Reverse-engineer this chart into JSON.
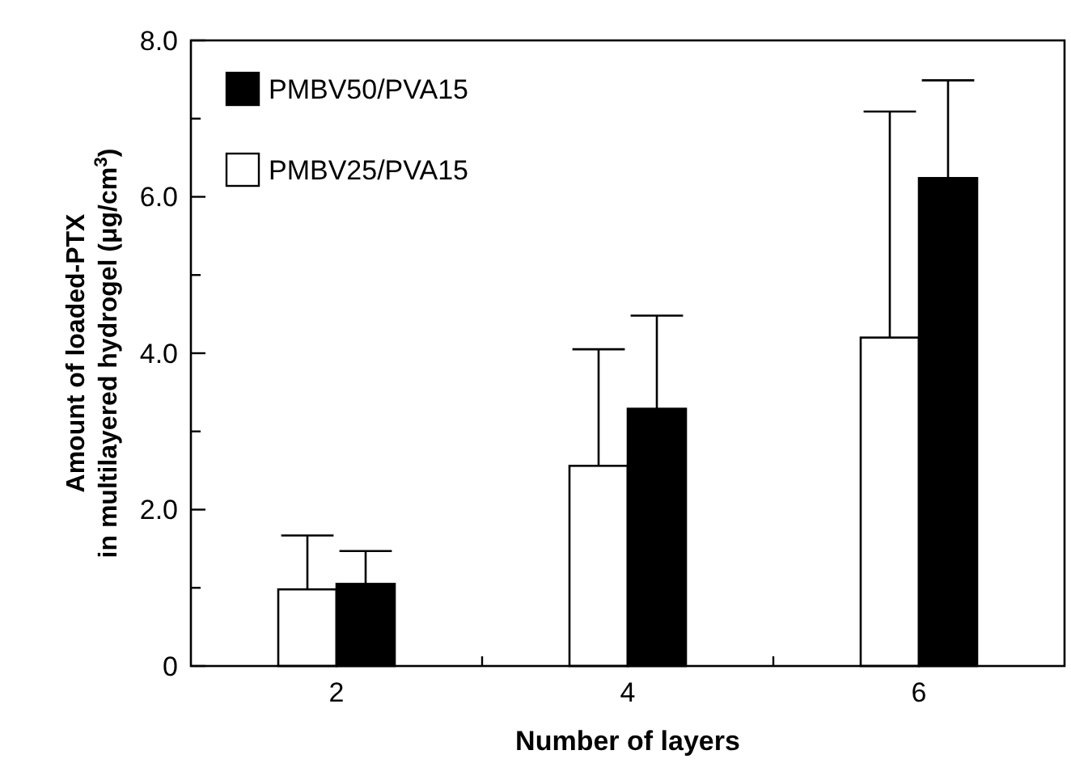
{
  "chart_data": {
    "type": "bar",
    "xlabel": "Number of layers",
    "ylabel": "Amount of loaded-PTX\nin multilayered hydrogel (μg/cm$^{3}$)",
    "categories": [
      "2",
      "4",
      "6"
    ],
    "series": [
      {
        "name": "PMBV25/PVA15",
        "color": "#ffffff",
        "values": [
          0.98,
          2.56,
          4.2
        ],
        "errors": [
          [
            0.98,
            1.67
          ],
          [
            2.56,
            4.05
          ],
          [
            4.2,
            7.09
          ]
        ]
      },
      {
        "name": "PMBV50/PVA15",
        "color": "#000000",
        "values": [
          1.05,
          3.29,
          6.24
        ],
        "errors": [
          [
            1.05,
            1.47
          ],
          [
            3.29,
            4.48
          ],
          [
            6.24,
            7.49
          ]
        ]
      }
    ],
    "ylim": [
      0,
      8
    ],
    "yticks": [
      0,
      {
        "value": 1,
        "label": null
      },
      {
        "value": 2,
        "label": "2.0"
      },
      {
        "value": 3,
        "label": null
      },
      {
        "value": 4,
        "label": "4.0"
      },
      {
        "value": 5,
        "label": null
      },
      {
        "value": 6,
        "label": "6.0"
      },
      {
        "value": 7,
        "label": null
      },
      {
        "value": 8,
        "label": "8.0"
      }
    ],
    "legend": "top left",
    "grid": false
  }
}
